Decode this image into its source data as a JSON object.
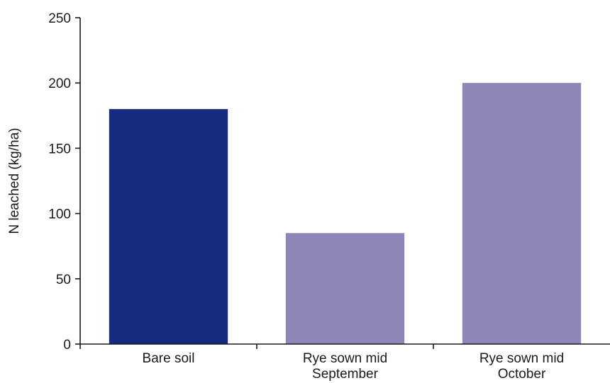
{
  "chart_data": {
    "type": "bar",
    "title": "",
    "xlabel": "",
    "ylabel": "N leached (kg/ha)",
    "ylim": [
      0,
      250
    ],
    "yticks": [
      0,
      50,
      100,
      150,
      200,
      250
    ],
    "grid": false,
    "categories": [
      [
        "Bare soil"
      ],
      [
        "Rye sown mid",
        "September"
      ],
      [
        "Rye sown mid",
        "October"
      ]
    ],
    "values": [
      180,
      85,
      200
    ],
    "colors": [
      "#172a7e",
      "#8e85b8",
      "#8e85b8"
    ]
  }
}
